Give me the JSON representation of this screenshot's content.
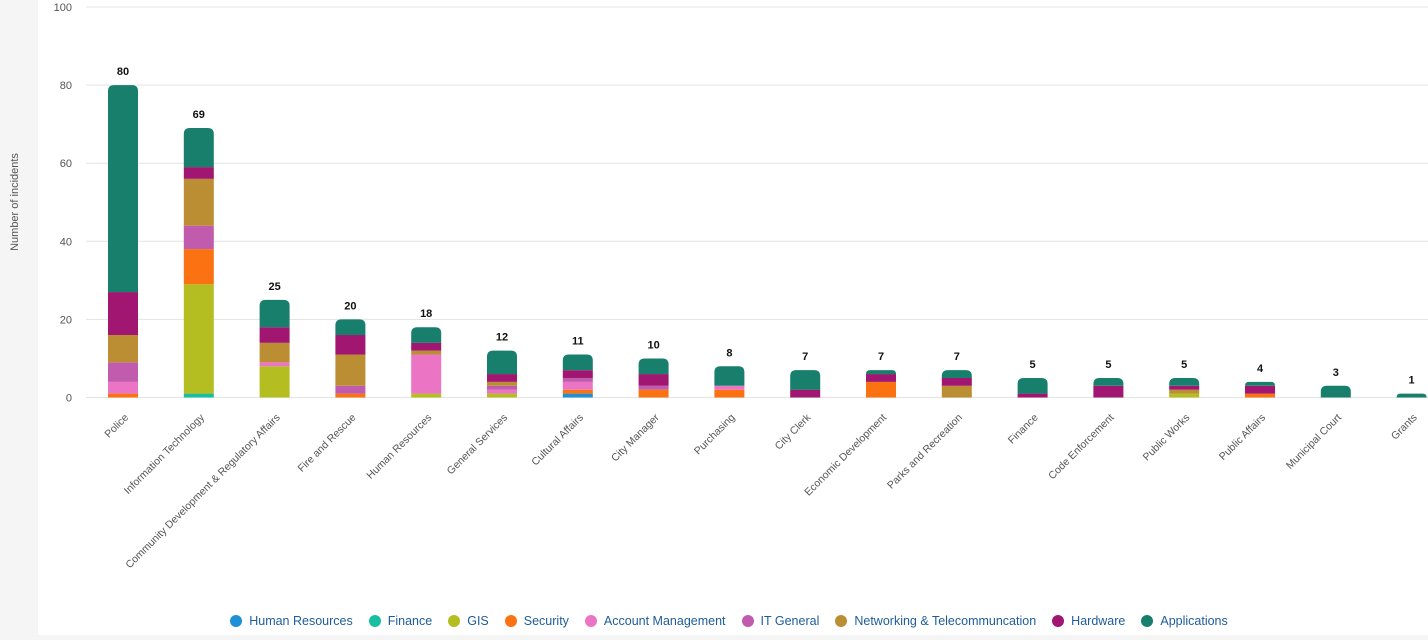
{
  "chart_data": {
    "type": "bar",
    "stacked": true,
    "ylabel": "Number of incidents",
    "xlabel": "",
    "ylim": [
      0,
      100
    ],
    "yticks": [
      0,
      20,
      40,
      60,
      80,
      100
    ],
    "grid": true,
    "legend_position": "bottom",
    "categories": [
      "Police",
      "Information Technology",
      "Community Development & Regulatory Affairs",
      "Fire and Rescue",
      "Human Resources",
      "General Services",
      "Cultural Affairs",
      "City Manager",
      "Purchasing",
      "City Clerk",
      "Economic Development",
      "Parks and Recreation",
      "Finance",
      "Code Enforcement",
      "Public Works",
      "Public Affairs",
      "Municipal Court",
      "Grants"
    ],
    "totals": [
      "80",
      "69",
      "25",
      "20",
      "18",
      "12",
      "11",
      "10",
      "8",
      "7",
      "7",
      "7",
      "5",
      "5",
      "5",
      "4",
      "3",
      "1"
    ],
    "series": [
      {
        "name": "Human Resources",
        "color": "#1f8fd6",
        "values": [
          0,
          0,
          0,
          0,
          0,
          0,
          1,
          0,
          0,
          0,
          0,
          0,
          0,
          0,
          0,
          0,
          0,
          0
        ]
      },
      {
        "name": "Finance",
        "color": "#17bfa0",
        "values": [
          0,
          1,
          0,
          0,
          0,
          0,
          0,
          0,
          0,
          0,
          0,
          0,
          0,
          0,
          0,
          0,
          0,
          0
        ]
      },
      {
        "name": "GIS",
        "color": "#b5be20",
        "values": [
          0,
          28,
          8,
          0,
          1,
          1,
          0,
          0,
          0,
          0,
          0,
          0,
          0,
          0,
          1,
          0,
          0,
          0
        ]
      },
      {
        "name": "Security",
        "color": "#fb7212",
        "values": [
          1,
          9,
          0,
          1,
          0,
          0,
          1,
          2,
          2,
          0,
          4,
          0,
          0,
          0,
          0,
          1,
          0,
          0
        ]
      },
      {
        "name": "Account Management",
        "color": "#ec74c4",
        "values": [
          3,
          0,
          1,
          0,
          10,
          1,
          2,
          0,
          1,
          0,
          0,
          0,
          0,
          0,
          0,
          0,
          0,
          0
        ]
      },
      {
        "name": "IT General",
        "color": "#c05bae",
        "values": [
          5,
          6,
          0,
          2,
          0,
          1,
          1,
          1,
          0,
          0,
          0,
          0,
          0,
          0,
          0,
          0,
          0,
          0
        ]
      },
      {
        "name": "Networking & Telecommuncation",
        "color": "#bc8e33",
        "values": [
          7,
          12,
          5,
          8,
          1,
          1,
          0,
          0,
          0,
          0,
          0,
          3,
          0,
          0,
          1,
          0,
          0,
          0
        ]
      },
      {
        "name": "Hardware",
        "color": "#a01670",
        "values": [
          11,
          3,
          4,
          5,
          2,
          2,
          2,
          3,
          0,
          2,
          2,
          2,
          1,
          3,
          1,
          2,
          0,
          0
        ]
      },
      {
        "name": "Applications",
        "color": "#177f6c",
        "values": [
          53,
          10,
          7,
          4,
          4,
          6,
          4,
          4,
          5,
          5,
          1,
          2,
          4,
          2,
          2,
          1,
          3,
          1
        ]
      }
    ]
  }
}
